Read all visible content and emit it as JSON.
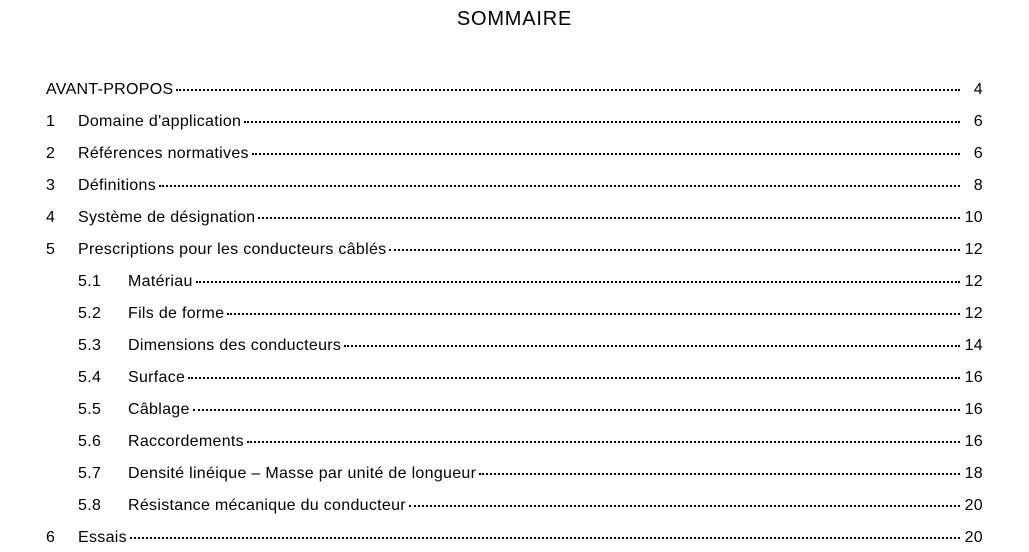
{
  "title": "SOMMAIRE",
  "typography": {
    "title_fontsize": 20,
    "body_fontsize": 16,
    "font_family": "Arial, Helvetica, sans-serif",
    "text_color": "#000000",
    "background_color": "#ffffff",
    "leader_style": "dotted"
  },
  "entries": [
    {
      "level": 0,
      "num": "",
      "label": "AVANT-PROPOS",
      "page": "4"
    },
    {
      "level": 1,
      "num": "1",
      "label": "Domaine d'application",
      "page": "6"
    },
    {
      "level": 1,
      "num": "2",
      "label": "Références normatives",
      "page": "6"
    },
    {
      "level": 1,
      "num": "3",
      "label": "Définitions",
      "page": "8"
    },
    {
      "level": 1,
      "num": "4",
      "label": "Système de désignation",
      "page": "10"
    },
    {
      "level": 1,
      "num": "5",
      "label": "Prescriptions pour les conducteurs câblés",
      "page": "12"
    },
    {
      "level": 2,
      "num": "5.1",
      "label": "Matériau",
      "page": "12"
    },
    {
      "level": 2,
      "num": "5.2",
      "label": "Fils de forme",
      "page": "12"
    },
    {
      "level": 2,
      "num": "5.3",
      "label": "Dimensions des conducteurs",
      "page": "14"
    },
    {
      "level": 2,
      "num": "5.4",
      "label": "Surface",
      "page": "16"
    },
    {
      "level": 2,
      "num": "5.5",
      "label": "Câblage",
      "page": "16"
    },
    {
      "level": 2,
      "num": "5.6",
      "label": "Raccordements",
      "page": "16"
    },
    {
      "level": 2,
      "num": "5.7",
      "label": "Densité linéique – Masse par unité de longueur",
      "page": "18"
    },
    {
      "level": 2,
      "num": "5.8",
      "label": "Résistance mécanique du conducteur",
      "page": "20"
    },
    {
      "level": 1,
      "num": "6",
      "label": "Essais",
      "page": "20"
    }
  ]
}
